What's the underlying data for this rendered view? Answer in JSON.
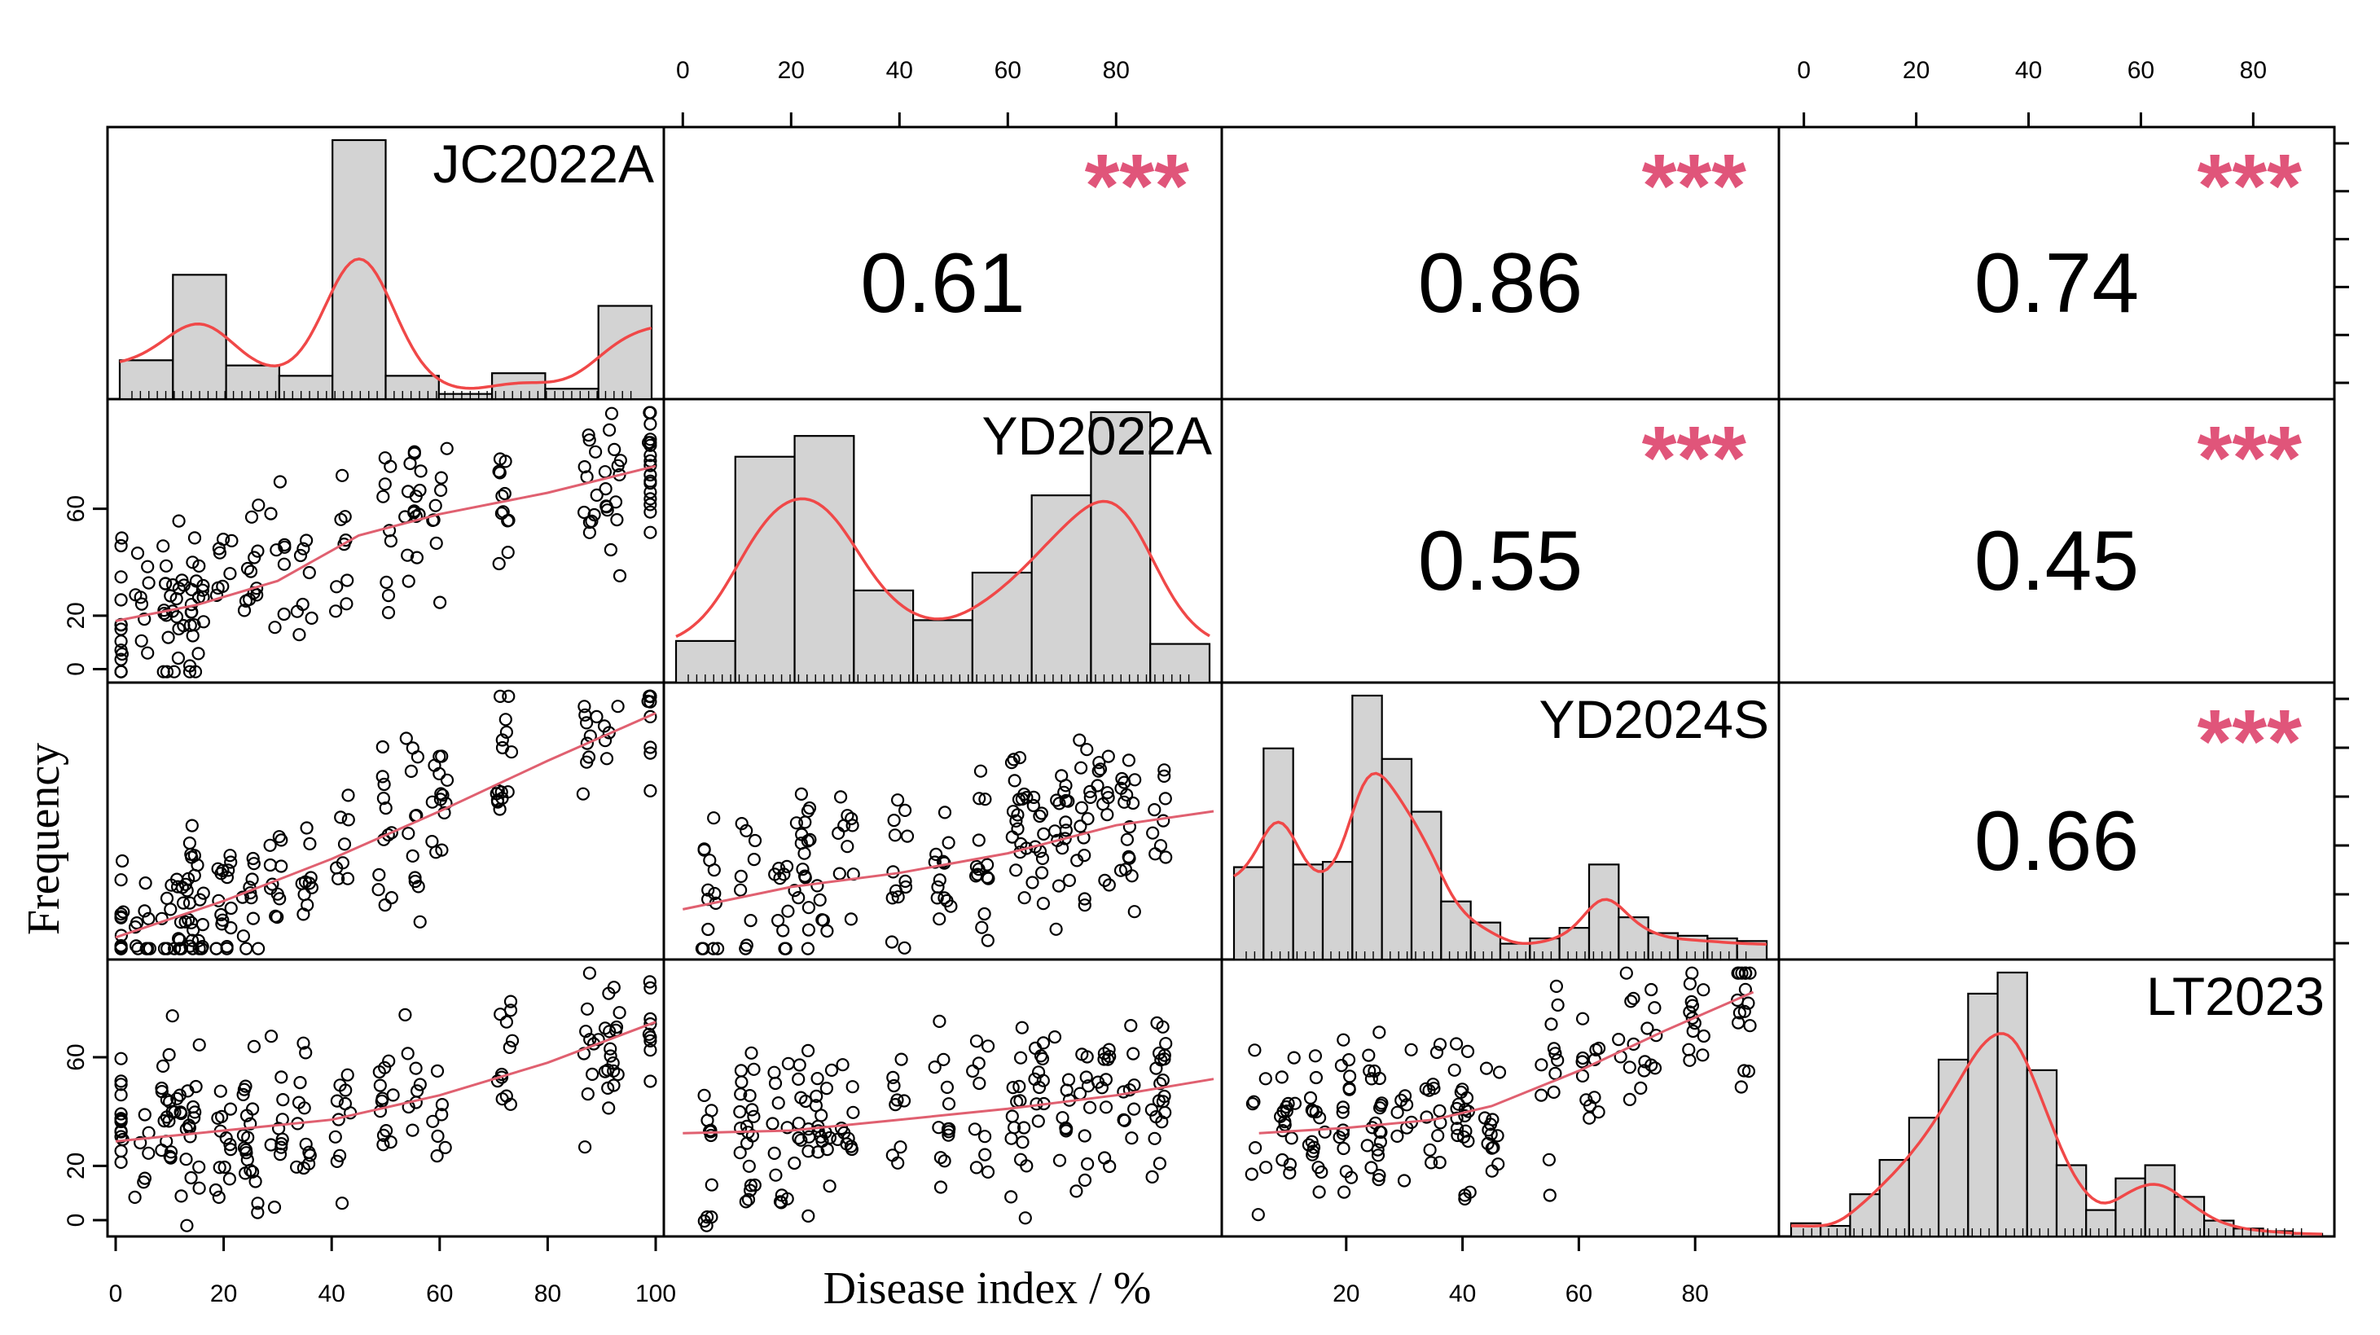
{
  "chart_data": {
    "type": "scatter-matrix",
    "xlabel": "Disease index / %",
    "ylabel": "Frequency",
    "variables": [
      "JC2022A",
      "YD2022A",
      "YD2024S",
      "LT2023"
    ],
    "colors": {
      "fit": "#f04848",
      "smooth": "#e06070",
      "stars": "#e0557a",
      "hist_fill": "#d3d3d3"
    },
    "axes": {
      "JC2022A": {
        "range": [
          0,
          100
        ],
        "ticks": [
          0,
          20,
          40,
          60,
          80,
          100
        ]
      },
      "YD2022A": {
        "range": [
          -2,
          98
        ],
        "ticks": [
          0,
          20,
          40,
          60,
          80
        ]
      },
      "YD2024S": {
        "range": [
          0,
          93
        ],
        "ticks": [
          20,
          40,
          60,
          80
        ]
      },
      "LT2023": {
        "range": [
          -3,
          93
        ],
        "ticks": [
          0,
          20,
          40,
          60,
          80
        ]
      }
    },
    "correlations": [
      {
        "row": 0,
        "col": 1,
        "r": "0.61",
        "sig": "***"
      },
      {
        "row": 0,
        "col": 2,
        "r": "0.86",
        "sig": "***"
      },
      {
        "row": 0,
        "col": 3,
        "r": "0.74",
        "sig": "***"
      },
      {
        "row": 1,
        "col": 2,
        "r": "0.55",
        "sig": "***"
      },
      {
        "row": 1,
        "col": 3,
        "r": "0.45",
        "sig": "***"
      },
      {
        "row": 2,
        "col": 3,
        "r": "0.66",
        "sig": "***"
      }
    ],
    "histograms": [
      {
        "var": "JC2022A",
        "breaks": [
          0,
          10,
          20,
          30,
          40,
          50,
          60,
          70,
          80,
          90,
          100
        ],
        "counts": [
          15,
          48,
          13,
          9,
          100,
          9,
          2,
          10,
          4,
          36
        ]
      },
      {
        "var": "YD2022A",
        "breaks": [
          0,
          10,
          20,
          30,
          40,
          50,
          60,
          70,
          80,
          90
        ],
        "counts": [
          14,
          76,
          83,
          31,
          21,
          37,
          63,
          91,
          13
        ]
      },
      {
        "var": "YD2024S",
        "breaks": [
          0,
          5,
          10,
          15,
          20,
          25,
          30,
          35,
          40,
          45,
          50,
          55,
          60,
          65,
          70,
          75,
          80,
          85,
          90
        ],
        "counts": [
          35,
          80,
          36,
          37,
          100,
          76,
          56,
          22,
          14,
          6,
          8,
          12,
          36,
          16,
          10,
          9,
          8,
          7
        ]
      },
      {
        "var": "LT2023",
        "breaks": [
          0,
          5,
          10,
          15,
          20,
          25,
          30,
          35,
          40,
          45,
          50,
          55,
          60,
          65,
          70,
          75,
          80,
          85,
          90
        ],
        "counts": [
          5,
          4,
          16,
          29,
          45,
          67,
          92,
          100,
          63,
          27,
          10,
          22,
          27,
          15,
          6,
          3,
          2,
          1
        ]
      }
    ],
    "scatter": [
      {
        "x": "JC2022A",
        "y": "YD2022A",
        "lowess": [
          [
            0,
            18
          ],
          [
            15,
            24
          ],
          [
            30,
            33
          ],
          [
            45,
            50
          ],
          [
            60,
            58
          ],
          [
            80,
            66
          ],
          [
            100,
            76
          ]
        ]
      },
      {
        "x": "JC2022A",
        "y": "YD2024S",
        "lowess": [
          [
            0,
            5
          ],
          [
            20,
            18
          ],
          [
            40,
            33
          ],
          [
            60,
            50
          ],
          [
            80,
            68
          ],
          [
            100,
            85
          ]
        ]
      },
      {
        "x": "YD2022A",
        "y": "YD2024S",
        "lowess": [
          [
            0,
            15
          ],
          [
            20,
            23
          ],
          [
            40,
            28
          ],
          [
            60,
            35
          ],
          [
            80,
            45
          ],
          [
            98,
            50
          ]
        ]
      },
      {
        "x": "JC2022A",
        "y": "LT2023",
        "lowess": [
          [
            0,
            29
          ],
          [
            20,
            33
          ],
          [
            40,
            37
          ],
          [
            60,
            46
          ],
          [
            80,
            58
          ],
          [
            100,
            73
          ]
        ]
      },
      {
        "x": "YD2022A",
        "y": "LT2023",
        "lowess": [
          [
            0,
            32
          ],
          [
            20,
            33
          ],
          [
            40,
            37
          ],
          [
            60,
            41
          ],
          [
            80,
            46
          ],
          [
            98,
            52
          ]
        ]
      },
      {
        "x": "YD2024S",
        "y": "LT2023",
        "lowess": [
          [
            5,
            32
          ],
          [
            20,
            34
          ],
          [
            35,
            37
          ],
          [
            45,
            42
          ],
          [
            60,
            55
          ],
          [
            75,
            70
          ],
          [
            90,
            84
          ]
        ]
      }
    ]
  }
}
